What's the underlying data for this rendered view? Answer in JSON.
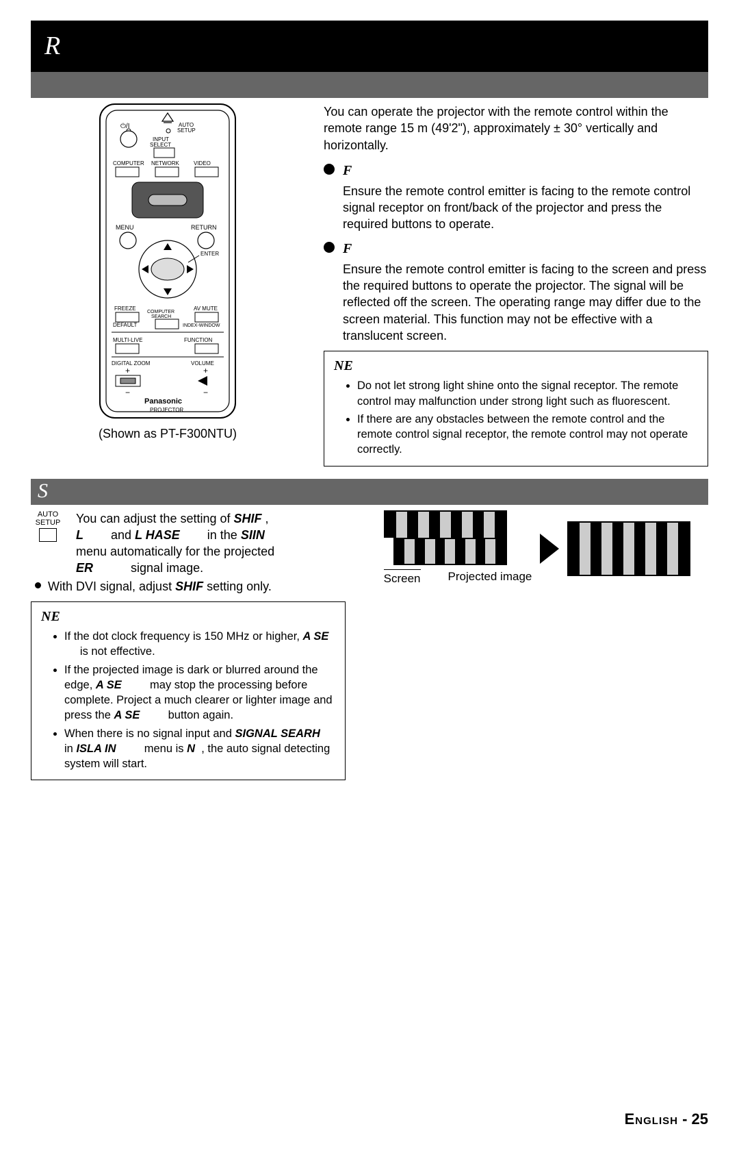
{
  "header": {
    "title_letter": "R"
  },
  "section2": {
    "title_letter": "S"
  },
  "remote": {
    "labels": {
      "auto_setup": "AUTO\nSETUP",
      "input_select": "INPUT\nSELECT",
      "computer": "COMPUTER",
      "network": "NETWORK",
      "video": "VIDEO",
      "menu": "MENU",
      "return": "RETURN",
      "enter": "ENTER",
      "freeze": "FREEZE",
      "av_mute": "AV MUTE",
      "computer_search": "COMPUTER\nSEARCH",
      "default": "DEFAULT",
      "index_window": "INDEX-WINDOW",
      "multi_live": "MULTI-LIVE",
      "function": "FUNCTION",
      "digital_zoom": "DIGITAL ZOOM",
      "volume": "VOLUME",
      "brand": "Panasonic",
      "projector": "PROJECTOR"
    },
    "caption": "(Shown as PT-F300NTU)"
  },
  "operating": {
    "intro": "You can operate the projector with the remote control within the remote range 15 m (49'2\"), approximately ± 30° vertically and horizontally.",
    "facing_proj_label": "F",
    "facing_proj_body": "Ensure the remote control emitter is facing to the remote control signal receptor on front/back of the projector and press the required buttons to operate.",
    "facing_screen_label": "F",
    "facing_screen_body": "Ensure the remote control emitter is facing to the screen and press the required buttons to operate the projector. The signal will be reflected off the screen. The operating range may differ due to the screen material. This function may not be effective with a translucent screen.",
    "note_title": "NE",
    "note_items": [
      "Do not let strong light shine onto the signal receptor. The remote control may malfunction under strong light such as fluorescent.",
      "If there are any obstacles between the remote control and the remote control signal receptor, the remote control may not operate correctly."
    ]
  },
  "setup": {
    "icon_label1": "AUTO",
    "icon_label2": "SETUP",
    "text_1a": "You can adjust the setting of ",
    "text_1b": "SHIF",
    "text_1comma": " ,",
    "text_2a": "L",
    "text_2b": " and ",
    "text_2c": "L HASE",
    "text_2d": " in the ",
    "text_2e": "SIIN",
    "text_3a": "menu automatically for the projected",
    "text_4a": "ER",
    "text_4b": " signal image.",
    "dvi_a": "With DVI signal, adjust ",
    "dvi_b": "SHIF",
    "dvi_c": "  setting only.",
    "note_title": "NE",
    "note_items_html": [
      "If the dot clock frequency is 150 MHz or higher, <span class=\"ital\">A SE</span> &nbsp;&nbsp;&nbsp;&nbsp; is not effective.",
      "If the projected image is dark or blurred around the edge, <span class=\"ital\">A SE</span> &nbsp;&nbsp;&nbsp;&nbsp;&nbsp;&nbsp;&nbsp; may stop the processing before complete. Project a much clearer or lighter image and press the <span class=\"ital\">A SE</span> &nbsp;&nbsp;&nbsp;&nbsp;&nbsp;&nbsp;&nbsp; button again.",
      "When there is no signal input and <span class=\"ital\">SIGNAL SEARH</span> &nbsp; in <span class=\"ital\">ISLA IN</span> &nbsp;&nbsp;&nbsp;&nbsp;&nbsp;&nbsp;&nbsp; menu is <span class=\"ital\">N</span> &nbsp;, the auto signal detecting system will start."
    ]
  },
  "diagram": {
    "left_bars_width": 180,
    "right_bars_width": 180,
    "bar_colors_a": [
      "#000",
      "#ccc",
      "#000",
      "#ccc",
      "#000",
      "#ccc",
      "#000",
      "#ccc",
      "#000",
      "#ccc",
      "#000"
    ],
    "bar_colors_b": [
      "#666",
      "#000",
      "#666",
      "#000",
      "#666",
      "#000",
      "#666",
      "#000",
      "#666",
      "#000",
      "#666"
    ],
    "label_screen": "Screen",
    "label_projected": "Projected image"
  },
  "footer": {
    "lang": "English",
    "sep": " - ",
    "page": "25"
  },
  "colors": {
    "black": "#000000",
    "gray_bar": "#666666",
    "light_gray": "#cccccc",
    "white": "#ffffff"
  }
}
